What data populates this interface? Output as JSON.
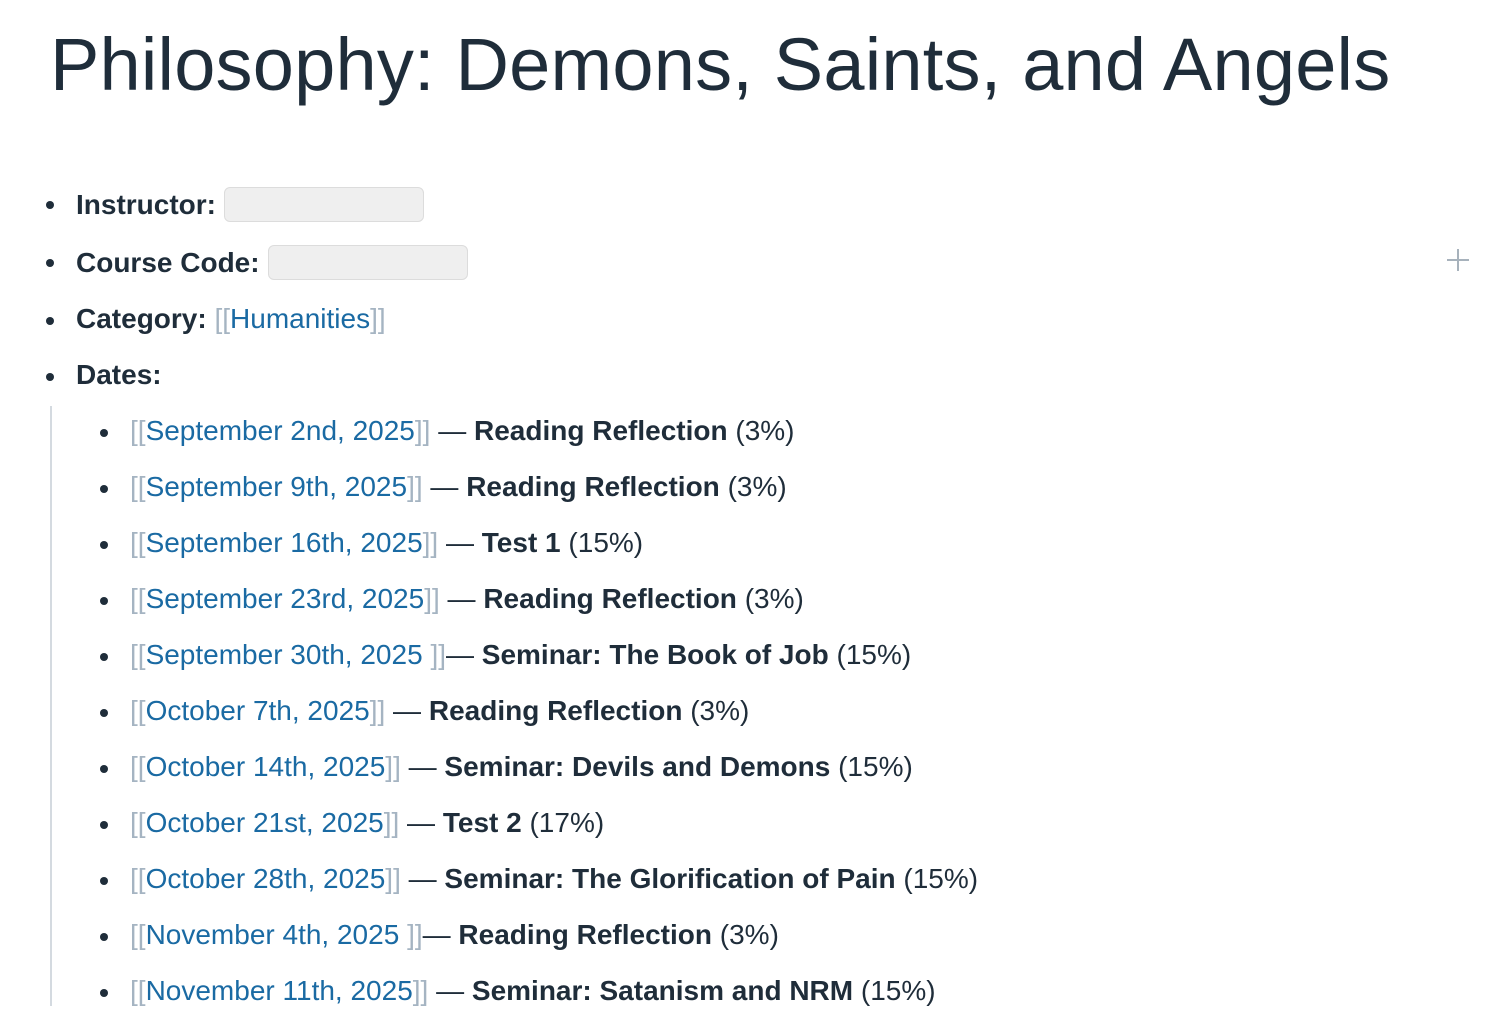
{
  "page": {
    "title": "Philosophy: Demons, Saints, and Angels",
    "add_icon": "plus-icon"
  },
  "properties": {
    "instructor": {
      "key": "Instructor:",
      "value": ""
    },
    "course_code": {
      "key": "Course Code:",
      "value": ""
    },
    "category": {
      "key": "Category:",
      "open": "[[",
      "link": "Humanities",
      "close": "]]"
    },
    "dates": {
      "key": "Dates:"
    }
  },
  "dates": [
    {
      "open": "[[",
      "link": "September 2nd, 2025",
      "close": "]]",
      "sep": " — ",
      "title": "Reading Reflection",
      "weight": " (3%)"
    },
    {
      "open": "[[",
      "link": "September 9th, 2025",
      "close": "]]",
      "sep": " — ",
      "title": "Reading Reflection",
      "weight": " (3%)"
    },
    {
      "open": "[[",
      "link": "September 16th, 2025",
      "close": "]]",
      "sep": " — ",
      "title": "Test 1",
      "weight": " (15%)"
    },
    {
      "open": "[[",
      "link": "September 23rd, 2025",
      "close": "]]",
      "sep": " — ",
      "title": "Reading Reflection",
      "weight": " (3%)"
    },
    {
      "open": "[[",
      "link": "September 30th, 2025 ",
      "close": "]]",
      "sep": "— ",
      "title": "Seminar: The Book of Job",
      "weight": " (15%)"
    },
    {
      "open": "[[",
      "link": "October 7th, 2025",
      "close": "]]",
      "sep": " — ",
      "title": "Reading Reflection",
      "weight": " (3%)"
    },
    {
      "open": "[[",
      "link": "October 14th, 2025",
      "close": "]]",
      "sep": " — ",
      "title": "Seminar: Devils and Demons",
      "weight": " (15%)"
    },
    {
      "open": "[[",
      "link": "October 21st, 2025",
      "close": "]]",
      "sep": " — ",
      "title": "Test 2",
      "weight": " (17%)"
    },
    {
      "open": "[[",
      "link": "October 28th, 2025",
      "close": "]]",
      "sep": " — ",
      "title": "Seminar: The Glorification of Pain",
      "weight": " (15%)"
    },
    {
      "open": "[[",
      "link": "November 4th, 2025 ",
      "close": "]]",
      "sep": "— ",
      "title": "Reading Reflection",
      "weight": " (3%)"
    },
    {
      "open": "[[",
      "link": "November 11th, 2025",
      "close": "]]",
      "sep": " — ",
      "title": "Seminar: Satanism and NRM",
      "weight": " (15%)"
    }
  ]
}
